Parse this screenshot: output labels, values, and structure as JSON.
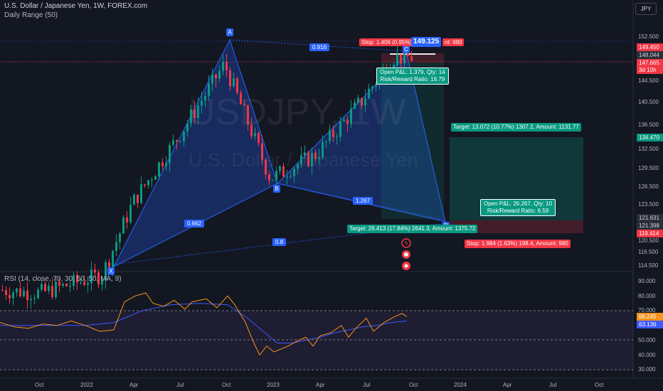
{
  "header": {
    "title": "U.S. Dollar / Japanese Yen, 1W, FOREX.com",
    "indicator": "Daily Range (50)",
    "rsi_title": "RSI (14, close, 70, 30, 50, 50, MA, 9)"
  },
  "currency": "JPY",
  "watermark": {
    "symbol": "USDJPY, 1W",
    "name": "U.S. Dollar / Japanese Yen"
  },
  "pattern": {
    "points": [
      "A",
      "B",
      "C",
      "D",
      "X"
    ],
    "ratios": [
      "0.916",
      "1.267",
      "0.662",
      "0.8"
    ]
  },
  "trade_top": {
    "stop": "Stop: 1.406 (0.95%)",
    "stop_tail": "nt: 980",
    "entry": "149.125",
    "open_pl": "Open P&L: 1.379, Qty: 14",
    "rr": "Risk/Reward Ratio: 18.79",
    "target": "Target: 13.072 (10.77%) 1307.2, Amount: 1131.77"
  },
  "trade_bottom": {
    "open_pl": "Open P&L: 26.267, Qty: 10",
    "rr": "Risk/Reward Ratio: 6.59",
    "target": "Target: 26.413 (17.84%) 2641.3, Amount: 1375.72",
    "stop": "Stop: 1.984 (1.63%) 198.4, Amount: 980"
  },
  "price_axis": [
    "152.500",
    "144.500",
    "140.500",
    "136.500",
    "132.500",
    "129.500",
    "126.500",
    "123.500",
    "120.500",
    "116.500",
    "114.500"
  ],
  "price_tags": {
    "p149_450": "149.450",
    "p148_044": "148.044",
    "p147_665": "147.665",
    "countdown": "3d 10h",
    "p134_470": "134.470",
    "p121_631": "121.631",
    "p121_398": "121.398",
    "p119_414": "119.414"
  },
  "rsi_axis": [
    "90.000",
    "80.000",
    "70.000",
    "50.000",
    "40.000",
    "30.000"
  ],
  "rsi_tags": {
    "rsi": "66.245",
    "ma": "63.136"
  },
  "time_axis": [
    "Oct",
    "2022",
    "Apr",
    "Jul",
    "Oct",
    "2023",
    "Apr",
    "Jul",
    "Oct",
    "2024",
    "Apr",
    "Jul",
    "Oct"
  ],
  "colors": {
    "up": "#089981",
    "down": "#f23645",
    "pattern": "#2962ff",
    "rsi": "#f7931a",
    "rsi_ma": "#3d5afe"
  },
  "chart_data": {
    "type": "candlestick",
    "x_dates": [
      "2021-09",
      "2022-01",
      "2022-04",
      "2022-07",
      "2022-10",
      "2023-01",
      "2023-04",
      "2023-07",
      "2023-10",
      "2024-01",
      "2024-04",
      "2024-07",
      "2024-10"
    ],
    "price_close_approx": [
      110,
      113,
      125,
      136,
      148,
      129,
      133,
      142,
      149.1
    ],
    "price_close_dates": [
      "2021-10",
      "2022-02",
      "2022-04",
      "2022-07",
      "2022-10",
      "2023-01",
      "2023-04",
      "2023-07",
      "2023-09"
    ],
    "harmonic_points": [
      {
        "name": "X",
        "date": "2022-03",
        "price": 114.8
      },
      {
        "name": "A",
        "date": "2022-10",
        "price": 151.9
      },
      {
        "name": "B",
        "date": "2023-01",
        "price": 127.2
      },
      {
        "name": "C",
        "date": "2023-09",
        "price": 148.9
      },
      {
        "name": "D",
        "date": "2023-12",
        "price": 121.6
      }
    ],
    "rsi_last": 66.245,
    "rsi_ma_last": 63.136,
    "rsi_levels": [
      70,
      50,
      30
    ]
  }
}
